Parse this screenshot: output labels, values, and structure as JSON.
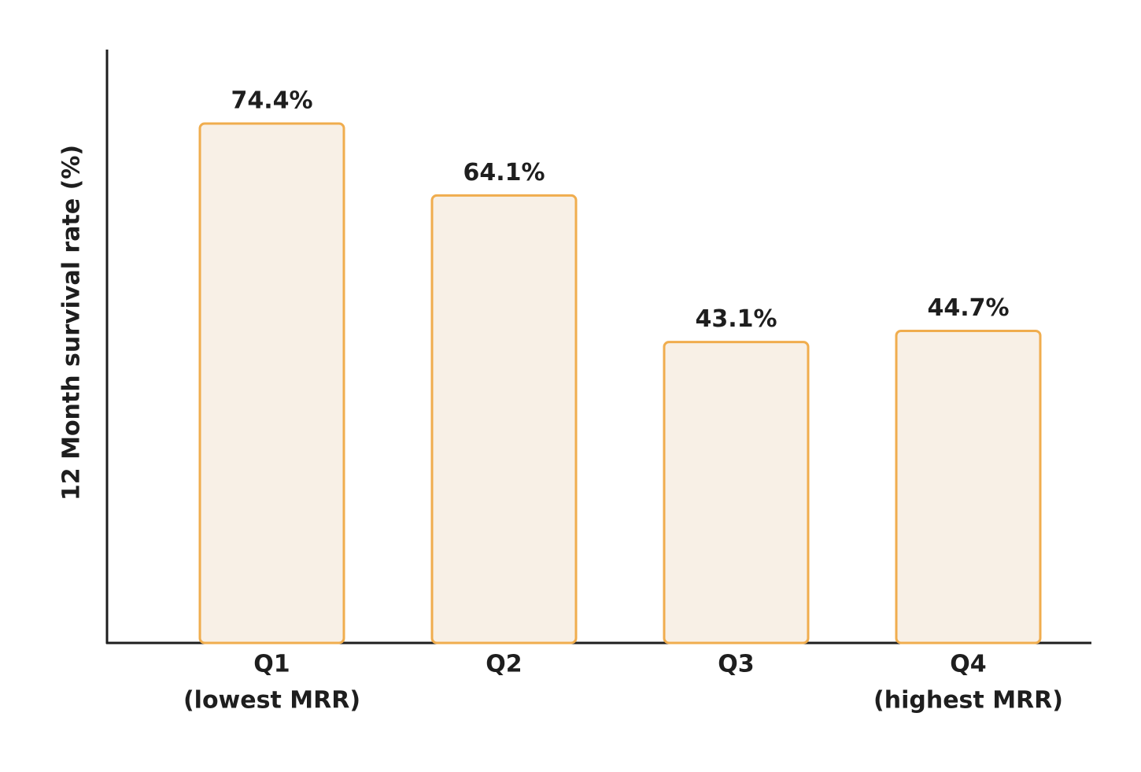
{
  "chart_data": {
    "type": "bar",
    "y_label": "12 Month survival rate (%)",
    "categories": [
      [
        "Q1",
        "(lowest MRR)"
      ],
      [
        "Q2"
      ],
      [
        "Q3"
      ],
      [
        "Q4",
        "(highest MRR)"
      ]
    ],
    "values": [
      74.4,
      64.1,
      43.1,
      44.7
    ],
    "value_labels": [
      "74.4%",
      "64.1%",
      "43.1%",
      "44.7%"
    ],
    "color": "#f0ad4e",
    "fill": "#f8f0e6",
    "ylim": [
      0,
      85
    ]
  }
}
